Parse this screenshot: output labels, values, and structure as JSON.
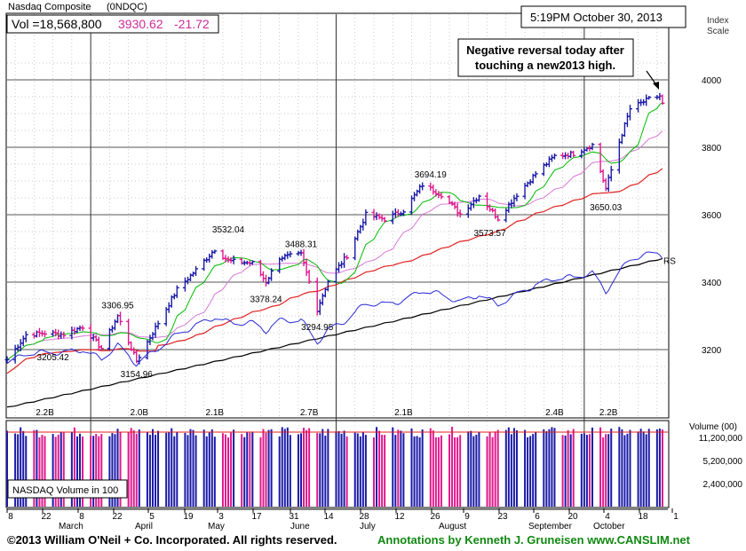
{
  "header": {
    "title": "Nasdaq Composite",
    "symbol": "(0NDQC)",
    "vol": "Vol =18,568,800",
    "last": "3930.62",
    "change": "-21.72",
    "timestamp": "5:19PM October 30, 2013",
    "scale_label_1": "Index",
    "scale_label_2": "Scale"
  },
  "annotation": {
    "line1": "Negative reversal today after",
    "line2": "touching a new2013 high."
  },
  "footer": {
    "copyright": "©2013 William O'Neil + Co. Incorporated. All rights reserved.",
    "credit": "Annotations by Kenneth J. Gruneisen www.CANSLIM.net"
  },
  "colors": {
    "up": "#1a1aa8",
    "down": "#e0188c",
    "ma50": "#00bb00",
    "ma_short": "#d879d8",
    "ma_mid": "#e02020",
    "ma200": "#000000",
    "rs": "#2a2ad8",
    "accent_price": "#cc2a9a"
  },
  "chart_data": [
    {
      "type": "candlestick",
      "title": "Nasdaq Composite (0NDQC)",
      "y_scale_label": "Index Scale",
      "ylim": [
        3050,
        4050
      ],
      "y_ticks": [
        "4000",
        "3800",
        "3600",
        "3400",
        "3200"
      ],
      "x_tick_labels": [
        "8",
        "22",
        "8",
        "22",
        "5",
        "19",
        "3",
        "17",
        "31",
        "14",
        "28",
        "12",
        "26",
        "9",
        "23",
        "6",
        "20",
        "4",
        "18",
        "1"
      ],
      "month_labels": [
        "March",
        "April",
        "May",
        "June",
        "July",
        "August",
        "September",
        "October"
      ],
      "price_labels": [
        {
          "text": "3205.42",
          "value": 3205.42,
          "date": "2013-03-18"
        },
        {
          "text": "3306.95",
          "value": 3306.95,
          "date": "2013-04-11"
        },
        {
          "text": "3154.96",
          "value": 3154.96,
          "date": "2013-04-18"
        },
        {
          "text": "3532.04",
          "value": 3532.04,
          "date": "2013-05-22"
        },
        {
          "text": "3378.24",
          "value": 3378.24,
          "date": "2013-06-05"
        },
        {
          "text": "3488.31",
          "value": 3488.31,
          "date": "2013-06-18"
        },
        {
          "text": "3294.95",
          "value": 3294.95,
          "date": "2013-06-24"
        },
        {
          "text": "3694.19",
          "value": 3694.19,
          "date": "2013-08-05"
        },
        {
          "text": "3573.57",
          "value": 3573.57,
          "date": "2013-08-27"
        },
        {
          "text": "3650.03",
          "value": 3650.03,
          "date": "2013-10-09"
        }
      ],
      "series_labels": [
        "RS"
      ],
      "close_path": [
        {
          "d": "2013-03-01",
          "v": 3170
        },
        {
          "d": "2013-03-08",
          "v": 3244
        },
        {
          "d": "2013-03-15",
          "v": 3249
        },
        {
          "d": "2013-03-22",
          "v": 3245
        },
        {
          "d": "2013-03-29",
          "v": 3268
        },
        {
          "d": "2013-04-05",
          "v": 3204
        },
        {
          "d": "2013-04-11",
          "v": 3300
        },
        {
          "d": "2013-04-18",
          "v": 3166
        },
        {
          "d": "2013-04-26",
          "v": 3279
        },
        {
          "d": "2013-05-03",
          "v": 3378
        },
        {
          "d": "2013-05-10",
          "v": 3436
        },
        {
          "d": "2013-05-17",
          "v": 3498
        },
        {
          "d": "2013-05-22",
          "v": 3463
        },
        {
          "d": "2013-05-31",
          "v": 3456
        },
        {
          "d": "2013-06-05",
          "v": 3401
        },
        {
          "d": "2013-06-10",
          "v": 3473
        },
        {
          "d": "2013-06-18",
          "v": 3482
        },
        {
          "d": "2013-06-24",
          "v": 3320
        },
        {
          "d": "2013-06-28",
          "v": 3403
        },
        {
          "d": "2013-07-05",
          "v": 3479
        },
        {
          "d": "2013-07-12",
          "v": 3600
        },
        {
          "d": "2013-07-19",
          "v": 3587
        },
        {
          "d": "2013-07-26",
          "v": 3613
        },
        {
          "d": "2013-08-02",
          "v": 3689
        },
        {
          "d": "2013-08-09",
          "v": 3660
        },
        {
          "d": "2013-08-16",
          "v": 3602
        },
        {
          "d": "2013-08-23",
          "v": 3657
        },
        {
          "d": "2013-08-30",
          "v": 3589
        },
        {
          "d": "2013-09-06",
          "v": 3660
        },
        {
          "d": "2013-09-13",
          "v": 3722
        },
        {
          "d": "2013-09-20",
          "v": 3774
        },
        {
          "d": "2013-09-27",
          "v": 3781
        },
        {
          "d": "2013-10-04",
          "v": 3807
        },
        {
          "d": "2013-10-09",
          "v": 3677
        },
        {
          "d": "2013-10-14",
          "v": 3816
        },
        {
          "d": "2013-10-18",
          "v": 3914
        },
        {
          "d": "2013-10-25",
          "v": 3943
        },
        {
          "d": "2013-10-29",
          "v": 3952
        },
        {
          "d": "2013-10-30",
          "v": 3930
        }
      ]
    },
    {
      "type": "bar",
      "title": "NASDAQ Volume in 100",
      "y_scale_label": "Volume (00)",
      "y_ticks": [
        "11,200,000",
        "5,200,000",
        "2,400,000"
      ],
      "peak_labels": [
        "2.2B",
        "2.0B",
        "2.1B",
        "2.7B",
        "2.1B",
        "2.4B",
        "2.2B"
      ]
    }
  ]
}
